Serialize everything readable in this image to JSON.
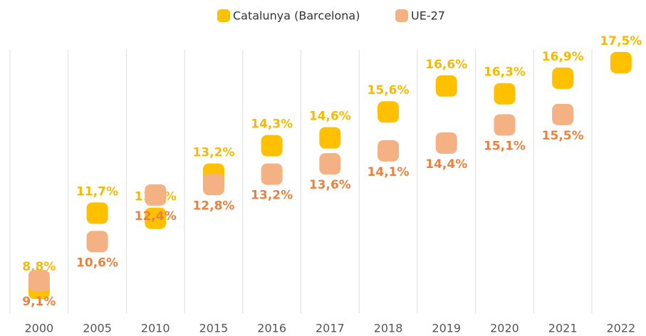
{
  "chart_data": {
    "type": "dot",
    "categories": [
      "2000",
      "2005",
      "2010",
      "2015",
      "2016",
      "2017",
      "2018",
      "2019",
      "2020",
      "2021",
      "2022"
    ],
    "series": [
      {
        "name": "Catalunya (Barcelona)",
        "color": "#FFC000",
        "label_color": "#F7B900",
        "values": [
          8.8,
          11.7,
          11.5,
          13.2,
          14.3,
          14.6,
          15.6,
          16.6,
          16.3,
          16.9,
          17.5
        ],
        "value_labels": [
          "8,8%",
          "11,7%",
          "11,5%",
          "13,2%",
          "14,3%",
          "14,6%",
          "15,6%",
          "16,6%",
          "16,3%",
          "16,9%",
          "17,5%"
        ]
      },
      {
        "name": "UE-27",
        "color": "#F4B183",
        "label_color": "#E9813F",
        "values": [
          9.1,
          10.6,
          12.4,
          12.8,
          13.2,
          13.6,
          14.1,
          14.4,
          15.1,
          15.5,
          null
        ],
        "value_labels": [
          "9,1%",
          "10,6%",
          "12,4%",
          "12,8%",
          "13,2%",
          "13,6%",
          "14,1%",
          "14,4%",
          "15,1%",
          "15,5%",
          null
        ]
      }
    ]
  }
}
